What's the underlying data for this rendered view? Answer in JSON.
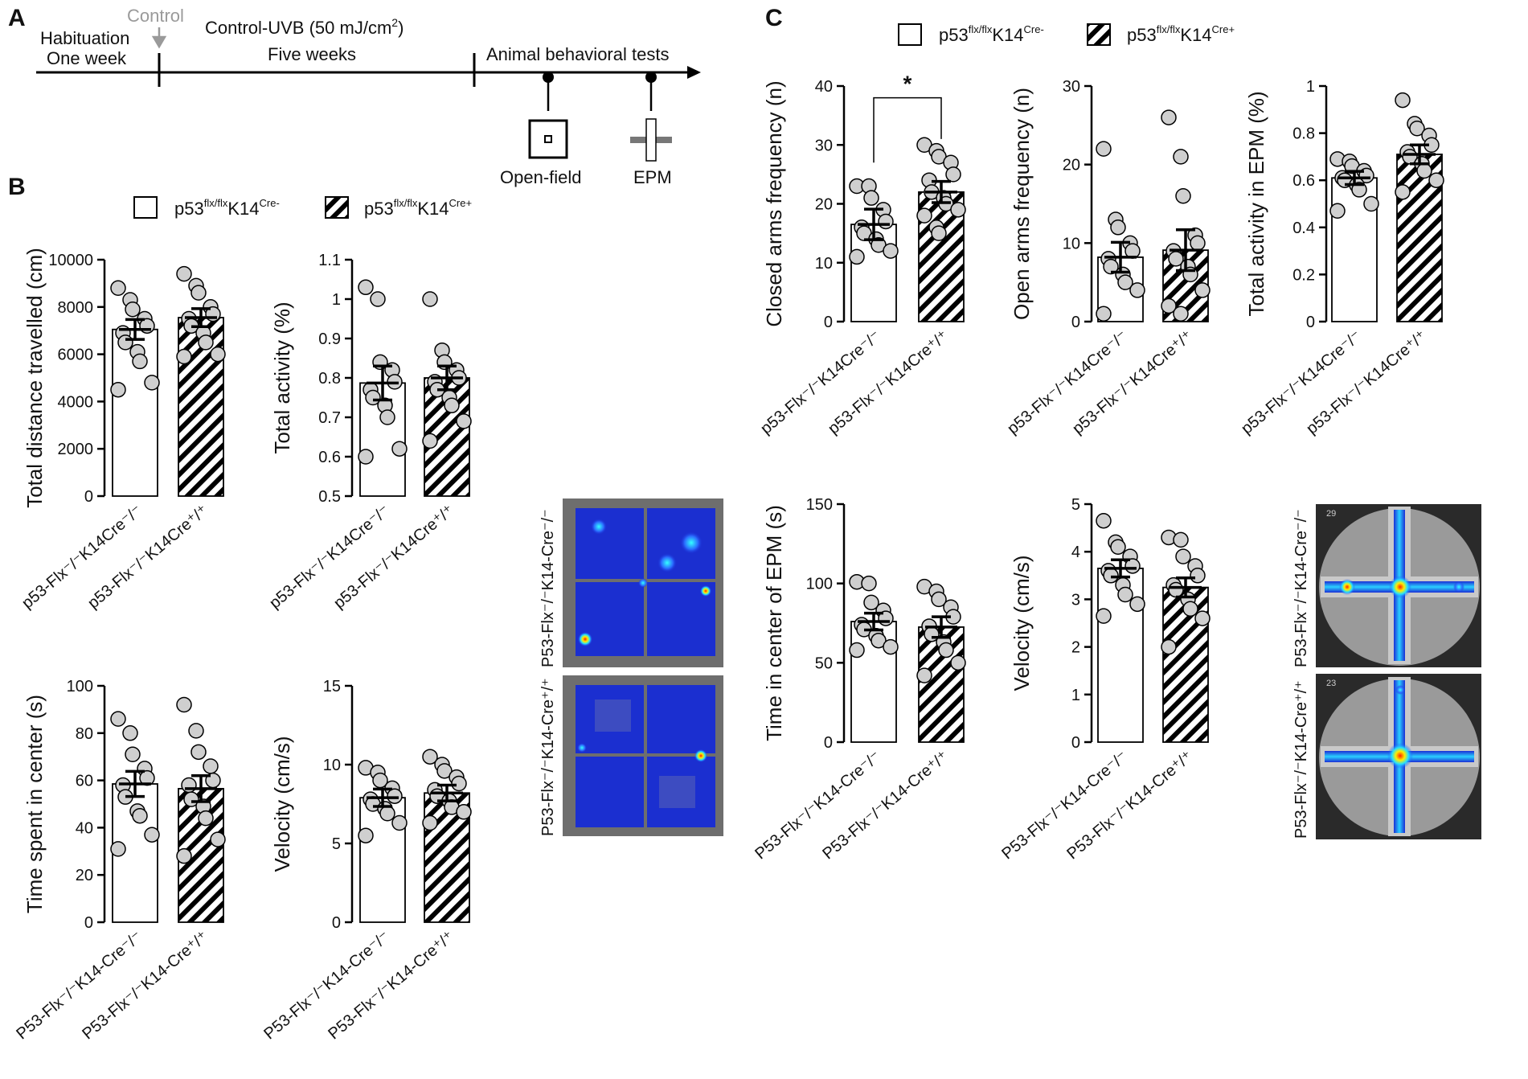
{
  "panels": {
    "a": "A",
    "b": "B",
    "c": "C"
  },
  "timeline": {
    "control_label": "Control",
    "habituation_line1": "Habituation",
    "habituation_line2": "One week",
    "uvb_label_prefix": "Control-UVB (50 mJ/cm",
    "uvb_label_sup": "2",
    "uvb_label_suffix": ")",
    "uvb_duration": "Five weeks",
    "tests_label": "Animal behavioral tests",
    "open_field_label": "Open-field",
    "epm_label": "EPM"
  },
  "legend": {
    "group1_base": "p53",
    "group1_sup1": "flx/flx",
    "group1_mid": "K14",
    "group1_sup2": "Cre-",
    "group2_base": "p53",
    "group2_sup1": "flx/flx",
    "group2_mid": "K14",
    "group2_sup2": "Cre+"
  },
  "heatmap_labels": {
    "of_top": "P53-Flx⁻/⁻K14-Cre⁻/⁻",
    "of_bottom": "P53-Flx⁻/⁻K14-Cre⁺/⁺",
    "epm_top": "P53-Flx⁻/⁻K14-Cre⁻/⁻",
    "epm_bottom": "P53-Flx⁻/⁻K14-Cre⁺/⁺",
    "epm_frame_top": "29",
    "epm_frame_bottom": "23"
  },
  "colors": {
    "bar_open_fill": "#ffffff",
    "hatch": "#000000",
    "point_fill": "#cfcfcf",
    "heat_low": "#1a2fd6",
    "heat_high": "#ff2200"
  },
  "chart_data": [
    {
      "id": "b1",
      "type": "bar",
      "ylabel": "Total distance travelled (cm)",
      "ylim": [
        0,
        10000
      ],
      "ticks": [
        0,
        2000,
        4000,
        6000,
        8000,
        10000
      ],
      "categories": [
        "p53-Flx⁻/⁻K14Cre⁻/⁻",
        "p53-Flx⁻/⁻K14Cre⁺/⁺"
      ],
      "means": [
        7050,
        7550
      ],
      "sem": [
        420,
        380
      ],
      "points": [
        [
          8800,
          8300,
          7900,
          7500,
          7200,
          6900,
          6500,
          6100,
          5700,
          4800,
          4500
        ],
        [
          9400,
          8900,
          8600,
          8000,
          7700,
          7500,
          7200,
          6900,
          6500,
          6000,
          5900
        ]
      ]
    },
    {
      "id": "b2",
      "type": "bar",
      "ylabel": "Total activity (%)",
      "ylim": [
        0.5,
        1.1
      ],
      "ticks": [
        0.5,
        0.6,
        0.7,
        0.8,
        0.9,
        1.0,
        1.1
      ],
      "categories": [
        "p53-Flx⁻/⁻K14Cre⁻/⁻",
        "p53-Flx⁻/⁻K14Cre⁺/⁺"
      ],
      "means": [
        0.787,
        0.8
      ],
      "sem": [
        0.043,
        0.03
      ],
      "points": [
        [
          1.03,
          1.0,
          0.84,
          0.82,
          0.79,
          0.77,
          0.75,
          0.73,
          0.7,
          0.62,
          0.6
        ],
        [
          1.0,
          0.87,
          0.84,
          0.82,
          0.8,
          0.79,
          0.77,
          0.75,
          0.73,
          0.69,
          0.64
        ]
      ]
    },
    {
      "id": "b3",
      "type": "bar",
      "ylabel": "Time spent in center (s)",
      "ylim": [
        0,
        100
      ],
      "ticks": [
        0,
        20,
        40,
        60,
        80,
        100
      ],
      "categories": [
        "P53-Flx⁻/⁻K14-Cre⁻/⁻",
        "P53-Flx⁻/⁻K14-Cre⁺/⁺"
      ],
      "means": [
        58.5,
        56.5
      ],
      "sem": [
        5.3,
        5.5
      ],
      "points": [
        [
          86,
          80,
          71,
          65,
          61,
          58,
          53,
          47,
          45,
          37,
          31
        ],
        [
          92,
          81,
          72,
          66,
          60,
          58,
          52,
          49,
          44,
          35,
          28
        ]
      ]
    },
    {
      "id": "b4",
      "type": "bar",
      "ylabel": "Velocity (cm/s)",
      "ylim": [
        0,
        15
      ],
      "ticks": [
        0,
        5,
        10,
        15
      ],
      "categories": [
        "P53-Flx⁻/⁻K14-Cre⁻/⁻",
        "P53-Flx⁻/⁻K14-Cre⁺/⁺"
      ],
      "means": [
        7.9,
        8.2
      ],
      "sem": [
        0.55,
        0.5
      ],
      "points": [
        [
          9.8,
          9.5,
          9.0,
          8.5,
          8.0,
          7.8,
          7.5,
          7.2,
          6.9,
          6.3,
          5.5
        ],
        [
          10.5,
          10.0,
          9.6,
          9.2,
          8.8,
          8.4,
          8.0,
          7.7,
          7.3,
          7.0,
          6.3
        ]
      ]
    },
    {
      "id": "c1",
      "type": "bar",
      "ylabel": "Closed arms frequency (n)",
      "ylim": [
        0,
        40
      ],
      "ticks": [
        0,
        10,
        20,
        30,
        40
      ],
      "categories": [
        "p53-Flx⁻/⁻K14Cre⁻/⁻",
        "p53-Flx⁻/⁻K14Cre⁺/⁺"
      ],
      "means": [
        16.5,
        22
      ],
      "sem": [
        2.6,
        1.8
      ],
      "points": [
        [
          23,
          23,
          21,
          19,
          17,
          16,
          15,
          14,
          13,
          12,
          11
        ],
        [
          30,
          29,
          28,
          27,
          25,
          24,
          22,
          21,
          20,
          19,
          18,
          16,
          15
        ]
      ],
      "significance": "*"
    },
    {
      "id": "c2",
      "type": "bar",
      "ylabel": "Open arms frequency (n)",
      "ylim": [
        0,
        30
      ],
      "ticks": [
        0,
        10,
        20,
        30
      ],
      "categories": [
        "p53-Flx⁻/⁻K14Cre⁻/⁻",
        "p53-Flx⁻/⁻K14Cre⁺/⁺"
      ],
      "means": [
        8.2,
        9.1
      ],
      "sem": [
        1.9,
        2.6
      ],
      "points": [
        [
          22,
          13,
          12,
          10,
          9,
          8,
          7,
          6,
          5,
          4,
          1
        ],
        [
          26,
          21,
          16,
          11,
          10,
          9,
          8,
          7,
          6,
          4,
          2,
          1
        ]
      ]
    },
    {
      "id": "c3",
      "type": "bar",
      "ylabel": "Total activity in EPM (%)",
      "ylim": [
        0,
        1.0
      ],
      "ticks": [
        0,
        0.2,
        0.4,
        0.6,
        0.8,
        1.0
      ],
      "categories": [
        "p53-Flx⁻/⁻K14Cre⁻/⁻",
        "p53-Flx⁻/⁻K14Cre⁺/⁺"
      ],
      "means": [
        0.61,
        0.71
      ],
      "sem": [
        0.028,
        0.04
      ],
      "points": [
        [
          0.69,
          0.68,
          0.66,
          0.64,
          0.62,
          0.61,
          0.6,
          0.58,
          0.56,
          0.5,
          0.47
        ],
        [
          0.94,
          0.84,
          0.82,
          0.79,
          0.75,
          0.72,
          0.7,
          0.67,
          0.64,
          0.6,
          0.55
        ]
      ]
    },
    {
      "id": "c4",
      "type": "bar",
      "ylabel": "Time in center of EPM (s)",
      "ylim": [
        0,
        150
      ],
      "ticks": [
        0,
        50,
        100,
        150
      ],
      "categories": [
        "P53-Flx⁻/⁻K14-Cre⁻/⁻",
        "P53-Flx⁻/⁻K14-Cre⁺/⁺"
      ],
      "means": [
        76,
        72.5
      ],
      "sem": [
        5.3,
        6.5
      ],
      "points": [
        [
          101,
          100,
          88,
          83,
          78,
          74,
          71,
          67,
          64,
          60,
          58
        ],
        [
          98,
          95,
          90,
          85,
          79,
          73,
          68,
          63,
          58,
          50,
          42
        ]
      ]
    },
    {
      "id": "c5",
      "type": "bar",
      "ylabel": "Velocity (cm/s)",
      "ylim": [
        0,
        5
      ],
      "ticks": [
        0,
        1,
        2,
        3,
        4,
        5
      ],
      "categories": [
        "P53-Flx⁻/⁻K14-Cre⁻/⁻",
        "P53-Flx⁻/⁻K14-Cre⁺/⁺"
      ],
      "means": [
        3.65,
        3.25
      ],
      "sem": [
        0.18,
        0.2
      ],
      "points": [
        [
          4.65,
          4.2,
          4.1,
          3.9,
          3.7,
          3.6,
          3.5,
          3.3,
          3.1,
          2.9,
          2.65
        ],
        [
          4.3,
          4.25,
          3.9,
          3.7,
          3.5,
          3.3,
          3.2,
          3.0,
          2.8,
          2.6,
          2.0
        ]
      ]
    }
  ]
}
